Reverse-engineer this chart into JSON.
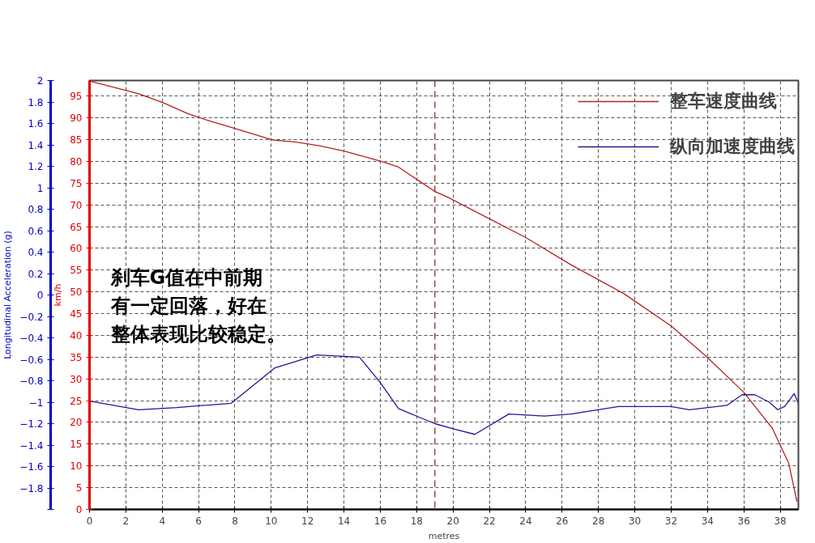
{
  "chart_data": {
    "type": "line",
    "xlabel": "metres",
    "ylabel": "km/h",
    "y2label": "Longitudinal Acceleration (g)",
    "xlim": [
      0,
      39
    ],
    "xticks": [
      0,
      2,
      4,
      6,
      8,
      10,
      12,
      14,
      16,
      18,
      20,
      22,
      24,
      26,
      28,
      30,
      32,
      34,
      36,
      38
    ],
    "ylim": [
      0,
      98.6
    ],
    "yticks": [
      0,
      5,
      10,
      15,
      20,
      25,
      30,
      35,
      40,
      45,
      50,
      55,
      60,
      65,
      70,
      75,
      80,
      85,
      90,
      95
    ],
    "y2lim": [
      -2,
      2
    ],
    "y2ticks": [
      2,
      1.8,
      1.6,
      1.4,
      1.2,
      1,
      0.8,
      0.6,
      0.4,
      0.2,
      0,
      -0.2,
      -0.4,
      -0.6,
      -0.8,
      -1,
      -1.2,
      -1.4,
      -1.6,
      -1.8,
      {
        "value": -2,
        "label": null
      }
    ],
    "grid": true,
    "legend": "top right",
    "series": [
      {
        "name": "整车速度曲线",
        "color": "#b22222",
        "x": [
          0,
          2.67,
          4.05,
          5.4,
          6.6,
          8.05,
          10.1,
          11.3,
          12.65,
          14.0,
          16.05,
          17.0,
          18.1,
          19.0,
          19.75,
          22.0,
          24.0,
          26.5,
          29.4,
          32.0,
          33.9,
          36.0,
          37.56,
          38.47,
          38.92
        ],
        "values": [
          98.5,
          95.6,
          93.5,
          91.0,
          89.3,
          87.5,
          84.9,
          84.5,
          83.6,
          82.4,
          80.0,
          78.7,
          75.6,
          73.1,
          71.7,
          66.8,
          62.5,
          56.2,
          49.6,
          42.2,
          35.3,
          26.9,
          18.7,
          10.6,
          1.8
        ]
      },
      {
        "name": "纵向加速度曲线",
        "color": "#1a1a99",
        "axis": "y2",
        "x": [
          0,
          2.7,
          4.8,
          6.3,
          7.8,
          10.2,
          12.5,
          14.85,
          15.97,
          17.0,
          19.0,
          20.05,
          21.2,
          23.07,
          25.03,
          26.5,
          29.1,
          32.0,
          33.0,
          35.07,
          35.9,
          36.6,
          37.4,
          37.86,
          38.24,
          38.77,
          39.0
        ],
        "values": [
          -0.99,
          -1.07,
          -1.05,
          -1.03,
          -1.01,
          -0.68,
          -0.56,
          -0.58,
          -0.81,
          -1.06,
          -1.2,
          -1.25,
          -1.3,
          -1.11,
          -1.13,
          -1.11,
          -1.04,
          -1.04,
          -1.07,
          -1.03,
          -0.93,
          -0.93,
          -1.0,
          -1.07,
          -1.04,
          -0.92,
          -1.01
        ]
      }
    ],
    "ref_lines": [
      {
        "axis": "x",
        "value": 19,
        "color": "#8b1a1a",
        "line_style": "dashed"
      }
    ],
    "annotations": [
      "刹车G值在中前期",
      "有一定回落，好在",
      "整体表现比较稳定。"
    ]
  }
}
